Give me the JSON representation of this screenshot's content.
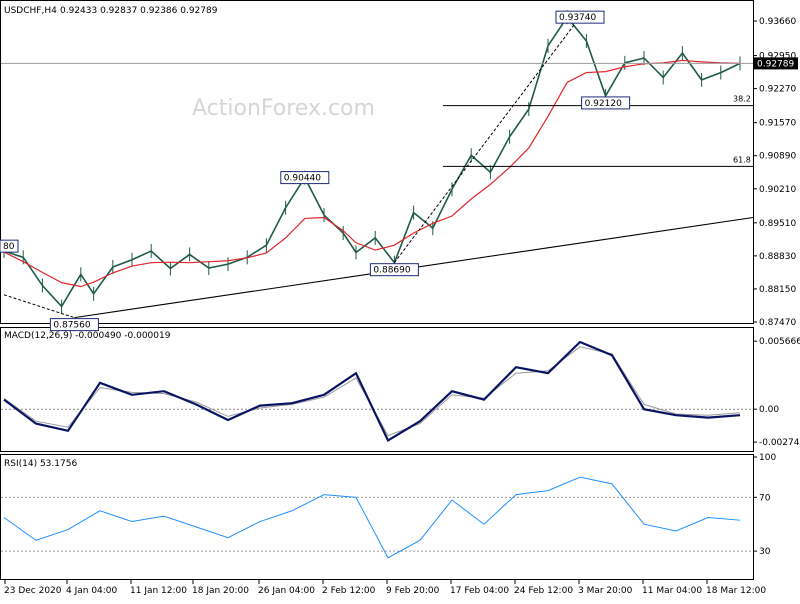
{
  "chart_data": [
    {
      "type": "line",
      "title": "USDCHF,H4",
      "ohlc_label": "0.92433 0.92837 0.92386 0.92789",
      "watermark": "ActionForex.com",
      "last_price": "0.92789",
      "ylim": [
        0.8747,
        0.9399
      ],
      "y_ticks": [
        "0.93660",
        "0.92950",
        "0.92270",
        "0.91570",
        "0.90890",
        "0.90210",
        "0.89510",
        "0.88830",
        "0.88150",
        "0.87470"
      ],
      "x_ticks": [
        "23 Dec 2020",
        "4 Jan 04:00",
        "11 Jan 12:00",
        "18 Jan 20:00",
        "26 Jan 04:00",
        "2 Feb 12:00",
        "9 Feb 20:00",
        "17 Feb 04:00",
        "24 Feb 12:00",
        "3 Mar 20:00",
        "11 Mar 04:00",
        "18 Mar 12:00"
      ],
      "price_path_x": [
        0,
        3,
        6,
        9,
        12,
        14,
        17,
        20,
        23,
        26,
        29,
        32,
        35,
        38,
        41,
        44,
        47,
        50,
        53,
        55,
        58,
        61,
        64,
        67,
        70,
        73,
        76,
        79,
        82,
        85,
        88,
        91,
        94,
        97,
        100,
        103,
        106,
        109,
        112,
        115
      ],
      "price_path": [
        0.8893,
        0.888,
        0.8822,
        0.8779,
        0.8845,
        0.8805,
        0.886,
        0.8875,
        0.8893,
        0.8857,
        0.8886,
        0.8858,
        0.8866,
        0.888,
        0.8905,
        0.8982,
        0.9044,
        0.8967,
        0.893,
        0.889,
        0.892,
        0.8869,
        0.8972,
        0.894,
        0.902,
        0.909,
        0.9055,
        0.9128,
        0.9185,
        0.9315,
        0.9374,
        0.9325,
        0.9212,
        0.928,
        0.929,
        0.925,
        0.93,
        0.9245,
        0.926,
        0.9279
      ],
      "ma_path": [
        0.8891,
        0.8871,
        0.8849,
        0.8828,
        0.882,
        0.8829,
        0.8848,
        0.8862,
        0.8869,
        0.887,
        0.8869,
        0.8871,
        0.8873,
        0.8879,
        0.8889,
        0.892,
        0.896,
        0.8962,
        0.8935,
        0.891,
        0.8895,
        0.8905,
        0.893,
        0.895,
        0.8965,
        0.9,
        0.903,
        0.9065,
        0.9105,
        0.917,
        0.924,
        0.926,
        0.9262,
        0.9272,
        0.9278,
        0.928,
        0.9285,
        0.9282,
        0.928,
        0.9279
      ],
      "annotations": [
        {
          "label": "0.93740",
          "x": 90,
          "y": 0.9374
        },
        {
          "label": "0.92120",
          "x": 94,
          "y": 0.9212
        },
        {
          "label": "0.90440",
          "x": 47,
          "y": 0.9044
        },
        {
          "label": "0.88690",
          "x": 61,
          "y": 0.8869
        },
        {
          "label": "0.87560",
          "x": 11,
          "y": 0.8756
        },
        {
          "label": "80",
          "x": 0,
          "y": 0.8903
        }
      ],
      "fib_levels": [
        {
          "label": "38.2",
          "y": 0.9192
        },
        {
          "label": "61.8",
          "y": 0.9067
        }
      ],
      "trendline": {
        "from": [
          11,
          0.8756
        ],
        "to": [
          115,
          0.8958
        ]
      }
    },
    {
      "type": "line",
      "title": "MACD(12,26,9) -0.000490 -0.000019",
      "ylim": [
        -0.0034,
        0.0066
      ],
      "y_ticks": [
        "0.005666",
        "0.00",
        "-0.002741"
      ],
      "x": [
        0,
        5,
        10,
        15,
        20,
        25,
        30,
        35,
        40,
        45,
        50,
        55,
        60,
        65,
        70,
        75,
        80,
        85,
        90,
        95,
        100,
        105,
        110,
        115
      ],
      "series": [
        {
          "values": [
            0.0008,
            -0.0012,
            -0.0018,
            0.0022,
            0.0012,
            0.0015,
            0.0004,
            -0.0009,
            0.0003,
            0.0005,
            0.0012,
            0.003,
            -0.0026,
            -0.001,
            0.0015,
            0.0008,
            0.0035,
            0.003,
            0.0056,
            0.0045,
            0.0,
            -0.0005,
            -0.0007,
            -0.0005
          ]
        },
        {
          "values": [
            0.0009,
            -0.001,
            -0.0015,
            0.0018,
            0.0014,
            0.0013,
            0.0006,
            -0.0006,
            0.0001,
            0.0004,
            0.001,
            0.0026,
            -0.0022,
            -0.0012,
            0.0012,
            0.0009,
            0.003,
            0.0032,
            0.0052,
            0.0046,
            0.0004,
            -0.0004,
            -0.0005,
            -0.0003
          ]
        }
      ]
    },
    {
      "type": "line",
      "title": "RSI(14) 53.1756",
      "ylim": [
        10,
        100
      ],
      "y_ticks": [
        "100",
        "70",
        "30"
      ],
      "x": [
        0,
        5,
        10,
        15,
        20,
        25,
        30,
        35,
        40,
        45,
        50,
        55,
        60,
        65,
        70,
        75,
        80,
        85,
        90,
        95,
        100,
        105,
        110,
        115
      ],
      "values": [
        55,
        38,
        46,
        60,
        52,
        56,
        48,
        40,
        52,
        60,
        72,
        70,
        25,
        38,
        68,
        50,
        72,
        75,
        85,
        80,
        50,
        45,
        55,
        53
      ]
    }
  ]
}
